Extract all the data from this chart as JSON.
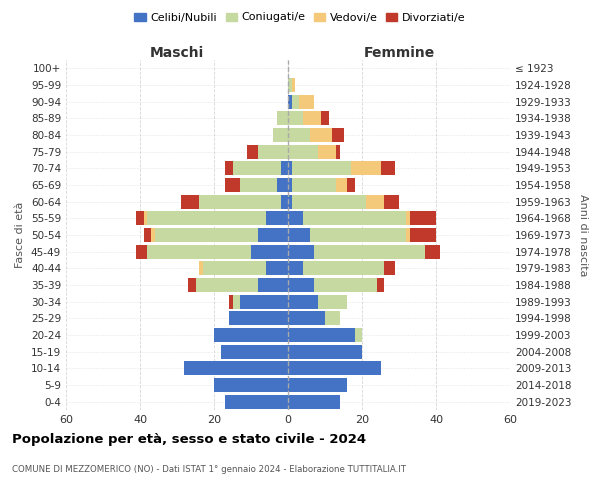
{
  "age_groups": [
    "0-4",
    "5-9",
    "10-14",
    "15-19",
    "20-24",
    "25-29",
    "30-34",
    "35-39",
    "40-44",
    "45-49",
    "50-54",
    "55-59",
    "60-64",
    "65-69",
    "70-74",
    "75-79",
    "80-84",
    "85-89",
    "90-94",
    "95-99",
    "100+"
  ],
  "birth_years": [
    "2019-2023",
    "2014-2018",
    "2009-2013",
    "2004-2008",
    "1999-2003",
    "1994-1998",
    "1989-1993",
    "1984-1988",
    "1979-1983",
    "1974-1978",
    "1969-1973",
    "1964-1968",
    "1959-1963",
    "1954-1958",
    "1949-1953",
    "1944-1948",
    "1939-1943",
    "1934-1938",
    "1929-1933",
    "1924-1928",
    "≤ 1923"
  ],
  "colors": {
    "celibi": "#4472c4",
    "coniugati": "#c5d9a0",
    "vedovi": "#f5c97a",
    "divorziati": "#c0392b"
  },
  "maschi": {
    "celibi": [
      17,
      20,
      28,
      18,
      20,
      16,
      13,
      8,
      6,
      10,
      8,
      6,
      2,
      3,
      2,
      0,
      0,
      0,
      0,
      0,
      0
    ],
    "coniugati": [
      0,
      0,
      0,
      0,
      0,
      0,
      2,
      17,
      17,
      28,
      28,
      32,
      22,
      10,
      13,
      8,
      4,
      3,
      0,
      0,
      0
    ],
    "vedovi": [
      0,
      0,
      0,
      0,
      0,
      0,
      0,
      0,
      1,
      0,
      1,
      1,
      0,
      0,
      0,
      0,
      0,
      0,
      0,
      0,
      0
    ],
    "divorziati": [
      0,
      0,
      0,
      0,
      0,
      0,
      1,
      2,
      0,
      3,
      2,
      2,
      5,
      4,
      2,
      3,
      0,
      0,
      0,
      0,
      0
    ]
  },
  "femmine": {
    "nubili": [
      14,
      16,
      25,
      20,
      18,
      10,
      8,
      7,
      4,
      7,
      6,
      4,
      1,
      1,
      1,
      0,
      0,
      0,
      1,
      0,
      0
    ],
    "coniugate": [
      0,
      0,
      0,
      0,
      2,
      4,
      8,
      17,
      22,
      30,
      26,
      28,
      20,
      12,
      16,
      8,
      6,
      4,
      2,
      1,
      0
    ],
    "vedove": [
      0,
      0,
      0,
      0,
      0,
      0,
      0,
      0,
      0,
      0,
      1,
      1,
      5,
      3,
      8,
      5,
      6,
      5,
      4,
      1,
      0
    ],
    "divorziate": [
      0,
      0,
      0,
      0,
      0,
      0,
      0,
      2,
      3,
      4,
      7,
      7,
      4,
      2,
      4,
      1,
      3,
      2,
      0,
      0,
      0
    ]
  },
  "xlim": 60,
  "title": "Popolazione per età, sesso e stato civile - 2024",
  "subtitle": "COMUNE DI MEZZOMERICO (NO) - Dati ISTAT 1° gennaio 2024 - Elaborazione TUTTITALIA.IT",
  "ylabel_left": "Fasce di età",
  "ylabel_right": "Anni di nascita",
  "xlabel_left": "Maschi",
  "xlabel_right": "Femmine"
}
